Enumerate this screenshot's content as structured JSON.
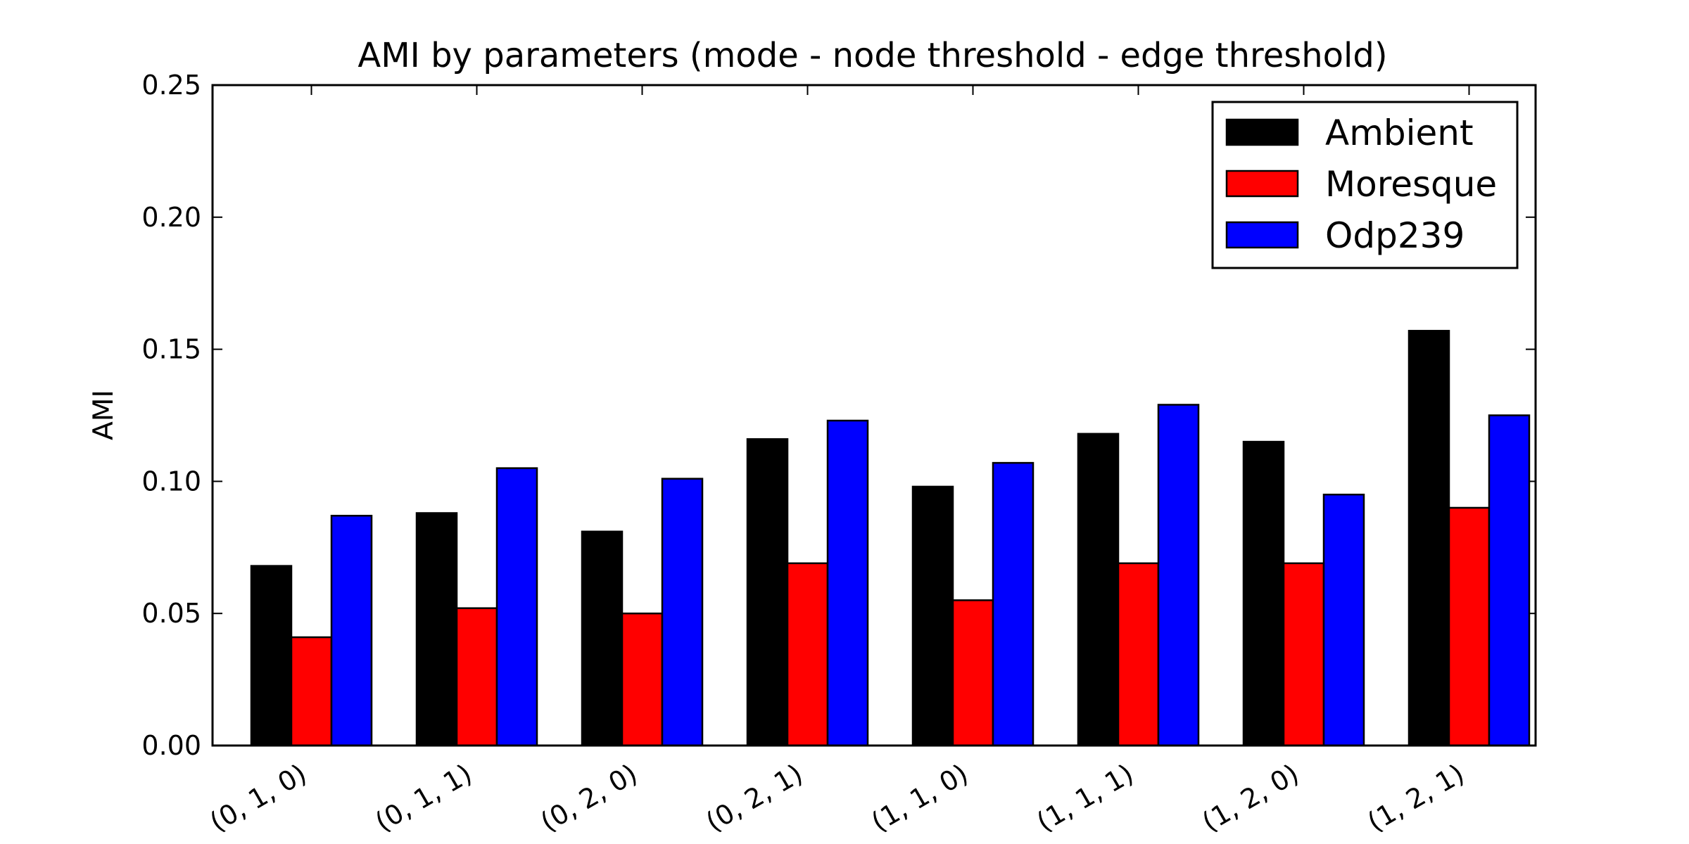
{
  "chart_data": {
    "type": "bar",
    "title": "AMI by parameters (mode - node threshold - edge threshold)",
    "xlabel": "",
    "ylabel": "AMI",
    "categories": [
      "(0, 1, 0)",
      "(0, 1, 1)",
      "(0, 2, 0)",
      "(0, 2, 1)",
      "(1, 1, 0)",
      "(1, 1, 1)",
      "(1, 2, 0)",
      "(1, 2, 1)"
    ],
    "series": [
      {
        "name": "Ambient",
        "color": "#000000",
        "values": [
          0.068,
          0.088,
          0.081,
          0.116,
          0.098,
          0.118,
          0.115,
          0.157
        ]
      },
      {
        "name": "Moresque",
        "color": "#ff0000",
        "values": [
          0.041,
          0.052,
          0.05,
          0.069,
          0.055,
          0.069,
          0.069,
          0.09
        ]
      },
      {
        "name": "Odp239",
        "color": "#0000ff",
        "values": [
          0.087,
          0.105,
          0.101,
          0.123,
          0.107,
          0.129,
          0.095,
          0.125
        ]
      }
    ],
    "yticks": [
      "0.00",
      "0.05",
      "0.10",
      "0.15",
      "0.20",
      "0.25"
    ],
    "ylim": [
      0,
      0.25
    ],
    "grid": false,
    "legend_position": "top-right"
  }
}
